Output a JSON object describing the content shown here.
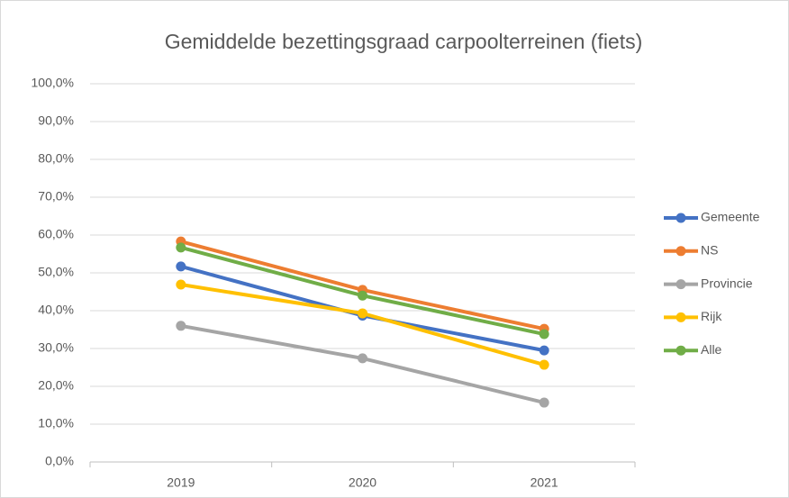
{
  "chart_data": {
    "type": "line",
    "title": "Gemiddelde bezettingsgraad carpoolterreinen (fiets)",
    "categories": [
      "2019",
      "2020",
      "2021"
    ],
    "series": [
      {
        "name": "Gemeente",
        "color": "#4472c4",
        "values": [
          51.7,
          38.7,
          29.5
        ]
      },
      {
        "name": "NS",
        "color": "#ed7d31",
        "values": [
          58.3,
          45.5,
          35.2
        ]
      },
      {
        "name": "Provincie",
        "color": "#a5a5a5",
        "values": [
          36.0,
          27.4,
          15.7
        ]
      },
      {
        "name": "Rijk",
        "color": "#ffc000",
        "values": [
          46.9,
          39.3,
          25.7
        ]
      },
      {
        "name": "Alle",
        "color": "#70ad47",
        "values": [
          56.7,
          44.0,
          33.8
        ]
      }
    ],
    "ylim": [
      0,
      100
    ],
    "yticks": [
      {
        "value": 0,
        "label": "0,0%"
      },
      {
        "value": 10,
        "label": "10,0%"
      },
      {
        "value": 20,
        "label": "20,0%"
      },
      {
        "value": 30,
        "label": "30,0%"
      },
      {
        "value": 40,
        "label": "40,0%"
      },
      {
        "value": 50,
        "label": "50,0%"
      },
      {
        "value": 60,
        "label": "60,0%"
      },
      {
        "value": 70,
        "label": "70,0%"
      },
      {
        "value": 80,
        "label": "80,0%"
      },
      {
        "value": 90,
        "label": "90,0%"
      },
      {
        "value": 100,
        "label": "100,0%"
      }
    ],
    "grid": true,
    "legend": "right"
  }
}
